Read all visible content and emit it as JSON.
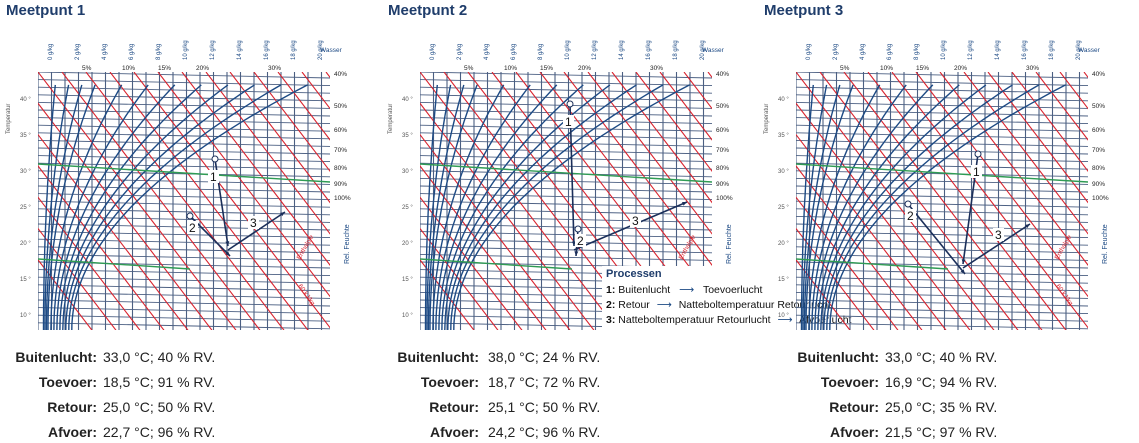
{
  "colors": {
    "title": "#1f3d6b",
    "grid": "#4b5f82",
    "enthalpy": "#d9232e",
    "rh": "#1d4a84",
    "green": "#2f9b54"
  },
  "chart_labels": {
    "temperature_axis": "Temperatur",
    "water_label": "Wasser",
    "water_ticks": [
      "0 g/kg",
      "2 g/kg",
      "4 g/kg",
      "6 g/kg",
      "8 g/kg",
      "10 g/kg",
      "12 g/kg",
      "14 g/kg",
      "16 g/kg",
      "18 g/kg",
      "20 g/kg"
    ],
    "rh_top_ticks": [
      "5%",
      "10%",
      "15%",
      "20%",
      "30%"
    ],
    "rh_right_ticks": [
      "40%",
      "50%",
      "60%",
      "70%",
      "80%",
      "90%",
      "100%"
    ],
    "temp_ticks": [
      "40 °",
      "35 °",
      "30 °",
      "25 °",
      "20 °",
      "15 °",
      "10 °"
    ],
    "enthalpy_label": "Enthalpie",
    "rh_axis_label": "Rel. Feuchte",
    "kj_label": "60 kJ/kg"
  },
  "panels": [
    {
      "title": "Meetpunt 1",
      "points": {
        "p1": "1",
        "p2": "2",
        "p3": "3"
      },
      "labels": {
        "buiten": "Buitenlucht:",
        "toevoer": "Toevoer:",
        "retour": "Retour:",
        "afvoer": "Afvoer:"
      },
      "values": {
        "buiten": "33,0 °C;  40 %  RV.",
        "toevoer": "18,5 °C;  91 %  RV.",
        "retour": "25,0 °C;  50 %  RV.",
        "afvoer": "22,7 °C;  96 %  RV."
      }
    },
    {
      "title": "Meetpunt 2",
      "points": {
        "p1": "1",
        "p2": "2",
        "p3": "3"
      },
      "labels": {
        "buiten": "Buitenlucht:",
        "toevoer": "Toevoer:",
        "retour": "Retour:",
        "afvoer": "Afvoer:"
      },
      "values": {
        "buiten": "38,0 °C;  24 %  RV.",
        "toevoer": "18,7 °C;  72 %  RV.",
        "retour": "25,1 °C;  50 %  RV.",
        "afvoer": "24,2 °C;  96 %  RV."
      }
    },
    {
      "title": "Meetpunt 3",
      "points": {
        "p1": "1",
        "p2": "2",
        "p3": "3"
      },
      "labels": {
        "buiten": "Buitenlucht:",
        "toevoer": "Toevoer:",
        "retour": "Retour:",
        "afvoer": "Afvoer:"
      },
      "values": {
        "buiten": "33,0 °C; 40 % RV.",
        "toevoer": "16,9 °C; 94 % RV.",
        "retour": "25,0 °C; 35 % RV.",
        "afvoer": "21,5 °C; 97 % RV."
      }
    }
  ],
  "processes": {
    "title": "Processen",
    "items": [
      {
        "num": "1:",
        "from": "Buitenlucht",
        "to": "Toevoerlucht"
      },
      {
        "num": "2:",
        "from": "Retour",
        "to": "Natteboltemperatuur Retourlucht"
      },
      {
        "num": "3:",
        "from": "Natteboltemperatuur Retourlucht",
        "to": "Afvoerlucht"
      }
    ]
  }
}
